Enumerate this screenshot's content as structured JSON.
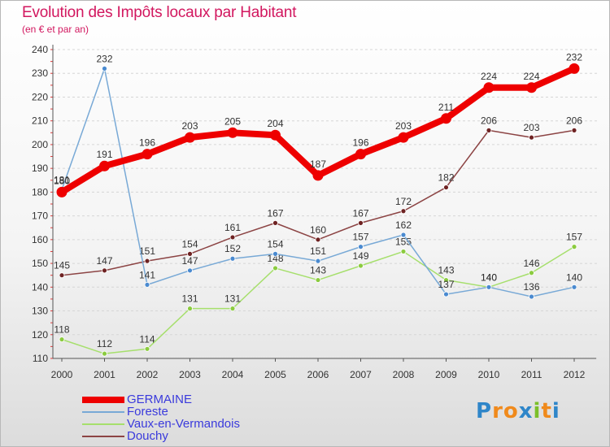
{
  "header": {
    "title": "Evolution des Impôts locaux par Habitant",
    "subtitle": "(en € et par an)"
  },
  "logo": {
    "letters": [
      "P",
      "r",
      "o",
      "x",
      "i",
      "t",
      "i"
    ],
    "colors": [
      "#2f86c9",
      "#f08a1c",
      "#f08a1c",
      "#2f86c9",
      "#7bbf2a",
      "#f08a1c",
      "#2f86c9"
    ]
  },
  "chart_data": {
    "type": "line",
    "title": "Evolution des Impôts locaux par Habitant",
    "subtitle": "(en € et par an)",
    "xlabel": "",
    "ylabel": "",
    "ylim": [
      110,
      240
    ],
    "yticks": [
      110,
      120,
      130,
      140,
      150,
      160,
      170,
      180,
      190,
      200,
      210,
      220,
      230,
      240
    ],
    "categories": [
      "2000",
      "2001",
      "2002",
      "2003",
      "2004",
      "2005",
      "2006",
      "2007",
      "2008",
      "2009",
      "2010",
      "2011",
      "2012"
    ],
    "grid": "horizontal",
    "legend_position": "bottom-left",
    "series": [
      {
        "name": "Vaux-en-Vermandois",
        "color": "#a6df6c",
        "marker": "#8bcb3f",
        "values": [
          118,
          112,
          114,
          131,
          131,
          148,
          143,
          149,
          155,
          143,
          140,
          146,
          157
        ]
      },
      {
        "name": "Douchy",
        "color": "#8c4444",
        "marker": "#6e2222",
        "values": [
          145,
          147,
          151,
          154,
          161,
          167,
          160,
          167,
          172,
          182,
          206,
          203,
          206
        ]
      },
      {
        "name": "Foreste",
        "color": "#78a9d6",
        "marker": "#4a8ad0",
        "values": [
          181,
          232,
          141,
          147,
          152,
          154,
          151,
          157,
          162,
          137,
          140,
          136,
          140
        ]
      },
      {
        "name": "GERMAINE",
        "color": "#ee0000",
        "marker": "#ee0000",
        "bold": true,
        "values": [
          180,
          191,
          196,
          203,
          205,
          204,
          187,
          196,
          203,
          211,
          224,
          224,
          232
        ]
      }
    ],
    "legend_order": [
      "GERMAINE",
      "Foreste",
      "Vaux-en-Vermandois",
      "Douchy"
    ]
  }
}
